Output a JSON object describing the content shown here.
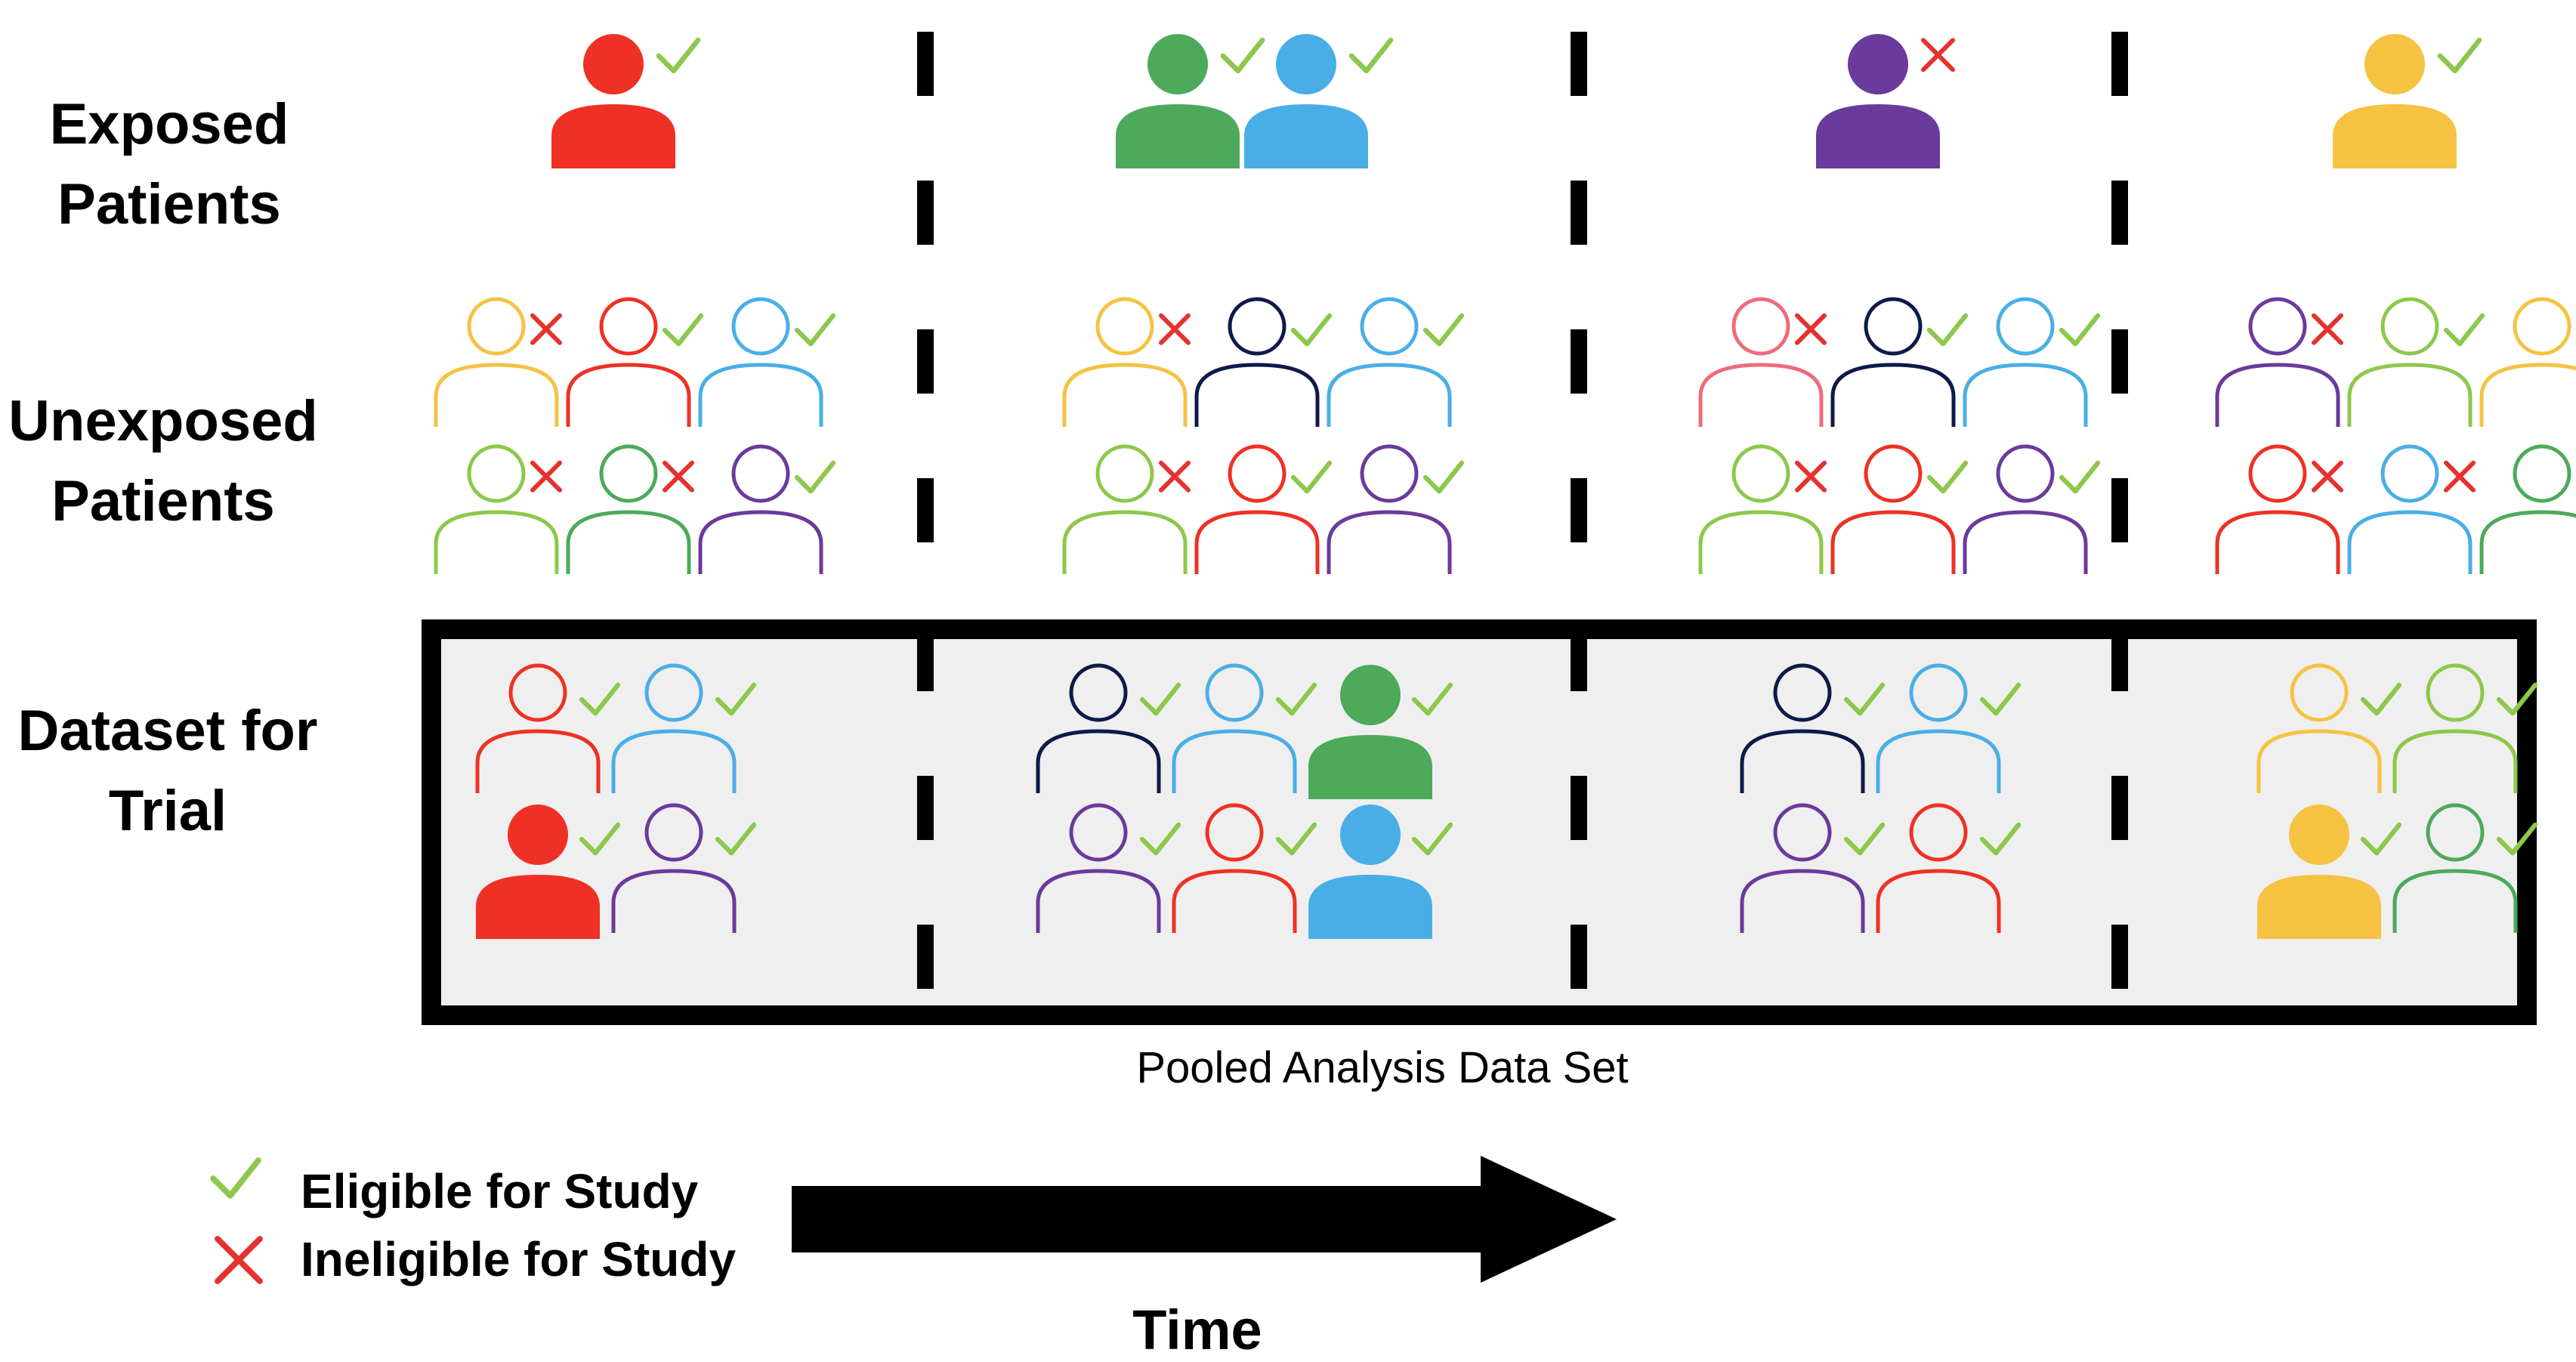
{
  "row_labels": {
    "exposed": [
      "Exposed",
      "Patients"
    ],
    "unexposed": [
      "Unexposed",
      "Patients"
    ],
    "dataset": [
      "Dataset for",
      "Trial"
    ]
  },
  "dataset_caption": "Pooled Analysis Data Set",
  "legend": {
    "eligible": "Eligible for Study",
    "ineligible": "Ineligible for Study"
  },
  "time_label": "Time",
  "colors": {
    "red": "#ee3124",
    "green": "#4caa5a",
    "blue": "#4aaee6",
    "purple": "#6a3a9c",
    "yellow": "#f5c242",
    "lightgreen": "#8cc84b",
    "navy": "#0d1a4a",
    "pink": "#ee6c7a",
    "check": "#8cc84b",
    "cross": "#e5322d",
    "panel_fill": "#efefef"
  },
  "periods": [
    {
      "exposed": [
        {
          "color": "red",
          "status": "eligible"
        }
      ],
      "unexposed": [
        {
          "color": "yellow",
          "status": "ineligible"
        },
        {
          "color": "red",
          "status": "eligible"
        },
        {
          "color": "blue",
          "status": "eligible"
        },
        {
          "color": "lightgreen",
          "status": "ineligible"
        },
        {
          "color": "green",
          "status": "ineligible"
        },
        {
          "color": "purple",
          "status": "eligible"
        }
      ],
      "dataset": [
        {
          "color": "red",
          "filled": false
        },
        {
          "color": "blue",
          "filled": false
        },
        {
          "color": "red",
          "filled": true
        },
        {
          "color": "purple",
          "filled": false
        }
      ]
    },
    {
      "exposed": [
        {
          "color": "green",
          "status": "eligible"
        },
        {
          "color": "blue",
          "status": "eligible"
        }
      ],
      "unexposed": [
        {
          "color": "yellow",
          "status": "ineligible"
        },
        {
          "color": "navy",
          "status": "eligible"
        },
        {
          "color": "blue",
          "status": "eligible"
        },
        {
          "color": "lightgreen",
          "status": "ineligible"
        },
        {
          "color": "red",
          "status": "eligible"
        },
        {
          "color": "purple",
          "status": "eligible"
        }
      ],
      "dataset": [
        {
          "color": "navy",
          "filled": false
        },
        {
          "color": "blue",
          "filled": false
        },
        {
          "color": "green",
          "filled": true
        },
        {
          "color": "purple",
          "filled": false
        },
        {
          "color": "red",
          "filled": false
        },
        {
          "color": "blue",
          "filled": true
        }
      ]
    },
    {
      "exposed": [
        {
          "color": "purple",
          "status": "ineligible"
        }
      ],
      "unexposed": [
        {
          "color": "pink",
          "status": "ineligible"
        },
        {
          "color": "navy",
          "status": "eligible"
        },
        {
          "color": "blue",
          "status": "eligible"
        },
        {
          "color": "lightgreen",
          "status": "ineligible"
        },
        {
          "color": "red",
          "status": "eligible"
        },
        {
          "color": "purple",
          "status": "eligible"
        }
      ],
      "dataset": [
        {
          "color": "navy",
          "filled": false
        },
        {
          "color": "blue",
          "filled": false
        },
        {
          "color": "purple",
          "filled": false
        },
        {
          "color": "red",
          "filled": false
        }
      ]
    },
    {
      "exposed": [
        {
          "color": "yellow",
          "status": "eligible"
        }
      ],
      "unexposed": [
        {
          "color": "purple",
          "status": "ineligible"
        },
        {
          "color": "lightgreen",
          "status": "eligible"
        },
        {
          "color": "yellow",
          "status": "eligible"
        },
        {
          "color": "red",
          "status": "ineligible"
        },
        {
          "color": "blue",
          "status": "ineligible"
        },
        {
          "color": "green",
          "status": "eligible"
        }
      ],
      "dataset": [
        {
          "color": "yellow",
          "filled": false
        },
        {
          "color": "lightgreen",
          "filled": false
        },
        {
          "color": "yellow",
          "filled": true
        },
        {
          "color": "green",
          "filled": false
        }
      ]
    }
  ]
}
